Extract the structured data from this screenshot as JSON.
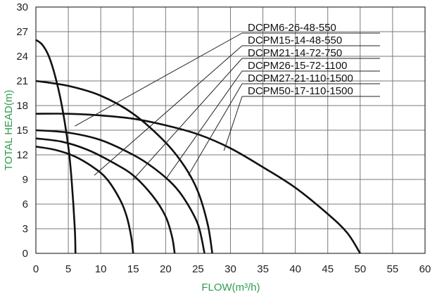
{
  "chart_data": {
    "type": "line",
    "xlabel": "FLOW(m³/h)",
    "ylabel": "TOTAL HEAD(m)",
    "xlim": [
      0,
      60
    ],
    "ylim": [
      0,
      30
    ],
    "xticks": [
      0,
      5,
      10,
      15,
      20,
      25,
      30,
      35,
      40,
      45,
      50,
      55,
      60
    ],
    "yticks": [
      0,
      3,
      6,
      9,
      12,
      15,
      18,
      21,
      24,
      27,
      30
    ],
    "grid": true,
    "legend_position": "top-right",
    "series": [
      {
        "name": "DCPM6-26-48-550",
        "x": [
          0,
          1,
          2,
          3,
          4,
          5,
          5.5,
          6,
          6.1
        ],
        "y": [
          26,
          25.4,
          24,
          21.5,
          18,
          13,
          9,
          3,
          0
        ],
        "label_anchor": [
          6,
          15.5
        ]
      },
      {
        "name": "DCPM15-14-48-550",
        "x": [
          0,
          3,
          6,
          9,
          11,
          13,
          14,
          14.7,
          15
        ],
        "y": [
          13,
          12.6,
          11.8,
          10.4,
          9,
          6.5,
          4.5,
          2,
          0
        ],
        "label_anchor": [
          9,
          9.5
        ]
      },
      {
        "name": "DCPM21-14-72-750",
        "x": [
          0,
          4,
          8,
          12,
          15,
          18,
          20,
          21,
          21.4
        ],
        "y": [
          14,
          13.6,
          12.6,
          11,
          9.5,
          7,
          4.5,
          2,
          0
        ],
        "label_anchor": [
          15,
          9
        ]
      },
      {
        "name": "DCPM26-15-72-1100",
        "x": [
          0,
          5,
          10,
          15,
          18,
          21,
          23,
          25,
          26
        ],
        "y": [
          15,
          14.7,
          13.8,
          12,
          10.5,
          8.5,
          6.5,
          3.5,
          0
        ],
        "label_anchor": [
          20,
          9
        ]
      },
      {
        "name": "DCPM27-21-110-1500",
        "x": [
          0,
          5,
          10,
          15,
          20,
          23,
          25,
          26.5,
          27.2
        ],
        "y": [
          21,
          20.4,
          19.2,
          17,
          13.5,
          10.5,
          7.5,
          3.5,
          0
        ],
        "label_anchor": [
          23.5,
          9.5
        ]
      },
      {
        "name": "DCPM50-17-110-1500",
        "x": [
          0,
          5,
          10,
          15,
          20,
          25,
          30,
          35,
          40,
          45,
          48,
          50
        ],
        "y": [
          17,
          17,
          16.8,
          16.4,
          15.6,
          14.5,
          12.8,
          10.5,
          8,
          4.8,
          2.5,
          0
        ],
        "label_anchor": [
          29,
          12.5
        ]
      }
    ]
  }
}
